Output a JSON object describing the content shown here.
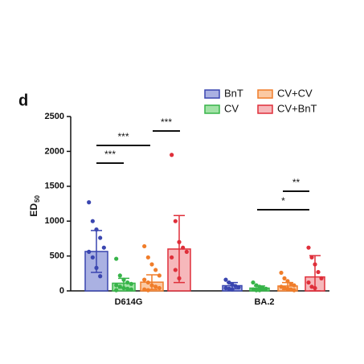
{
  "chart_data": {
    "type": "bar",
    "panel_label": "d",
    "y_label": {
      "main": "ED",
      "sub": "50"
    },
    "categories": [
      "D614G",
      "BA.2"
    ],
    "ylim": [
      0,
      2500
    ],
    "yticks": [
      0,
      500,
      1000,
      1500,
      2000,
      2500
    ],
    "series": [
      {
        "name": "BnT",
        "color": "#3a46b0",
        "fill_color": "#aab1e2",
        "values": [
          565,
          75
        ],
        "errors": [
          300,
          45
        ],
        "points": [
          [
            1270,
            1000,
            880,
            760,
            620,
            560,
            480,
            330,
            210
          ],
          [
            160,
            120,
            90,
            70,
            50,
            40,
            30,
            20
          ]
        ]
      },
      {
        "name": "CV",
        "color": "#37b449",
        "fill_color": "#a2e2a6",
        "values": [
          110,
          40
        ],
        "errors": [
          70,
          30
        ],
        "points": [
          [
            460,
            220,
            160,
            120,
            100,
            80,
            60,
            40,
            30,
            20,
            10
          ],
          [
            120,
            80,
            60,
            40,
            30,
            20,
            10,
            10
          ]
        ]
      },
      {
        "name": "CV+CV",
        "color": "#f07d2a",
        "fill_color": "#fbc9a3",
        "values": [
          125,
          70
        ],
        "errors": [
          105,
          50
        ],
        "points": [
          [
            640,
            480,
            380,
            300,
            220,
            160,
            120,
            80,
            60,
            40,
            20,
            10
          ],
          [
            260,
            180,
            140,
            100,
            80,
            60,
            40,
            30,
            20,
            10
          ]
        ]
      },
      {
        "name": "CV+BnT",
        "color": "#df2f3a",
        "fill_color": "#f6b8bb",
        "values": [
          600,
          200
        ],
        "errors": [
          480,
          305
        ],
        "points": [
          [
            1950,
            1000,
            700,
            620,
            560,
            480,
            300,
            180
          ],
          [
            620,
            480,
            380,
            270,
            180,
            120,
            60,
            40
          ]
        ]
      }
    ],
    "significance": [
      "***",
      "***",
      "***",
      "**",
      "*"
    ]
  }
}
